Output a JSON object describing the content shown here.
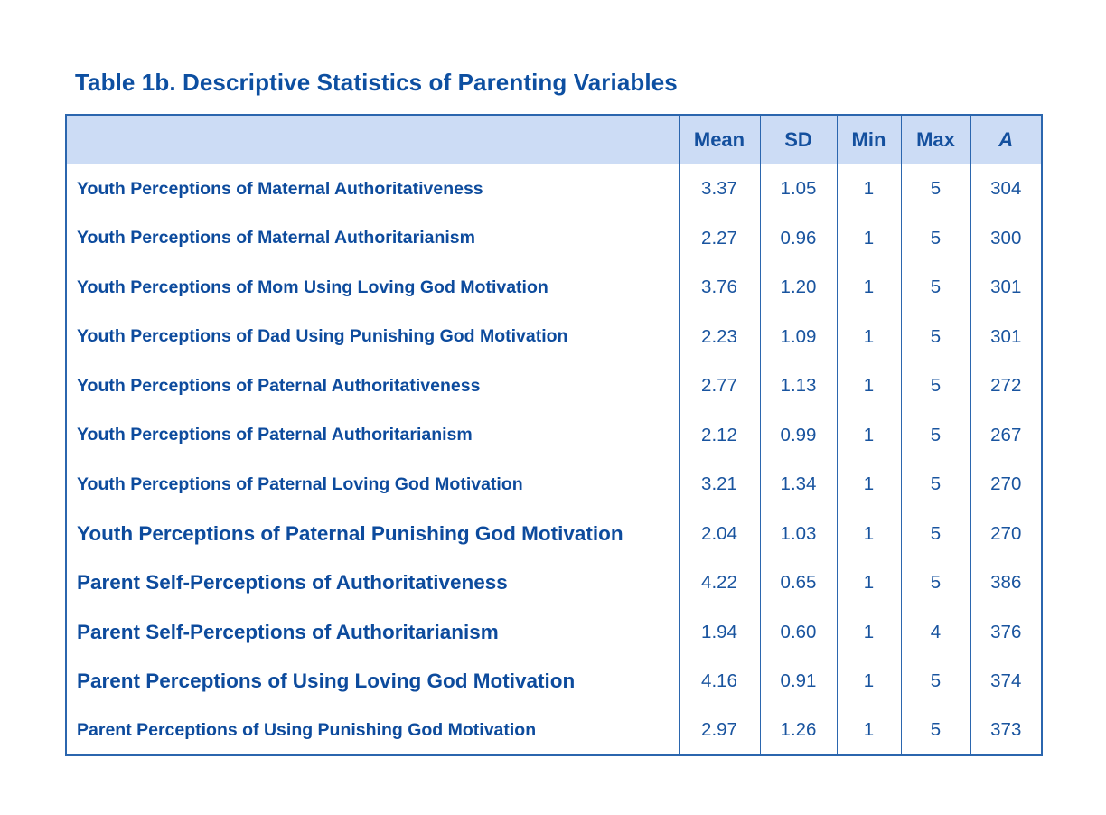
{
  "colors": {
    "title_text": "#0d4fa1",
    "table_border": "#2b66ae",
    "header_background": "#ccdcf5",
    "label_text": "#0d4b9d",
    "number_text": "#19549f",
    "page_background": "#ffffff"
  },
  "chart_data": {
    "type": "table",
    "title": "Table 1b. Descriptive Statistics of Parenting Variables",
    "columns": [
      "",
      "Mean",
      "SD",
      "Min",
      "Max",
      "A"
    ],
    "rows": [
      {
        "label": "Youth Perceptions of Maternal Authoritativeness",
        "mean": "3.37",
        "sd": "1.05",
        "min": "1",
        "max": "5",
        "n": "304",
        "large": false
      },
      {
        "label": "Youth Perceptions of Maternal Authoritarianism",
        "mean": "2.27",
        "sd": "0.96",
        "min": "1",
        "max": "5",
        "n": "300",
        "large": false
      },
      {
        "label": "Youth Perceptions of Mom Using Loving God Motivation",
        "mean": "3.76",
        "sd": "1.20",
        "min": "1",
        "max": "5",
        "n": "301",
        "large": false
      },
      {
        "label": "Youth Perceptions of Dad Using Punishing God Motivation",
        "mean": "2.23",
        "sd": "1.09",
        "min": "1",
        "max": "5",
        "n": "301",
        "large": false
      },
      {
        "label": "Youth Perceptions of Paternal Authoritativeness",
        "mean": "2.77",
        "sd": "1.13",
        "min": "1",
        "max": "5",
        "n": "272",
        "large": false
      },
      {
        "label": "Youth Perceptions of Paternal Authoritarianism",
        "mean": "2.12",
        "sd": "0.99",
        "min": "1",
        "max": "5",
        "n": "267",
        "large": false
      },
      {
        "label": "Youth Perceptions of Paternal Loving God Motivation",
        "mean": "3.21",
        "sd": "1.34",
        "min": "1",
        "max": "5",
        "n": "270",
        "large": false
      },
      {
        "label": "Youth Perceptions of Paternal Punishing God Motivation",
        "mean": "2.04",
        "sd": "1.03",
        "min": "1",
        "max": "5",
        "n": "270",
        "large": true
      },
      {
        "label": "Parent Self-Perceptions of Authoritativeness",
        "mean": "4.22",
        "sd": "0.65",
        "min": "1",
        "max": "5",
        "n": "386",
        "large": true
      },
      {
        "label": "Parent Self-Perceptions of Authoritarianism",
        "mean": "1.94",
        "sd": "0.60",
        "min": "1",
        "max": "4",
        "n": "376",
        "large": true
      },
      {
        "label": "Parent Perceptions of Using Loving God Motivation",
        "mean": "4.16",
        "sd": "0.91",
        "min": "1",
        "max": "5",
        "n": "374",
        "large": true
      },
      {
        "label": "Parent Perceptions of Using Punishing God Motivation",
        "mean": "2.97",
        "sd": "1.26",
        "min": "1",
        "max": "5",
        "n": "373",
        "large": false
      }
    ]
  }
}
